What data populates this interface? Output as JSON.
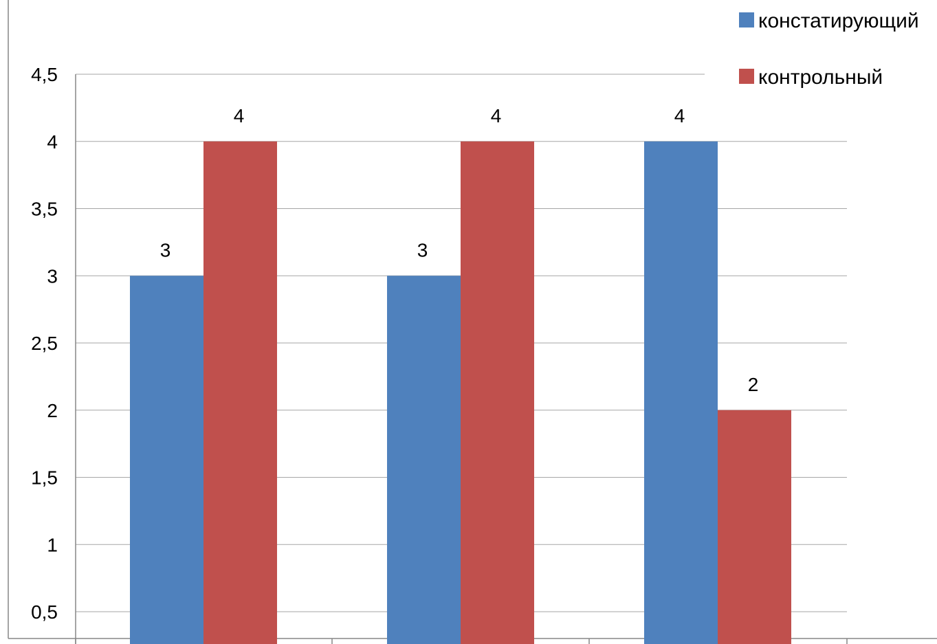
{
  "chart_data": {
    "type": "bar",
    "title": "",
    "xlabel": "",
    "ylabel": "",
    "categories": [
      "",
      "",
      ""
    ],
    "ylim": [
      0.5,
      4.5
    ],
    "yticks": [
      0.5,
      1,
      1.5,
      2,
      2.5,
      3,
      3.5,
      4,
      4.5
    ],
    "ytick_labels": [
      "0,5",
      "1",
      "1,5",
      "2",
      "2,5",
      "3",
      "3,5",
      "4",
      "4,5"
    ],
    "grid": true,
    "legend_position": "top-right",
    "series": [
      {
        "name": "констатирующий",
        "color": "#4f81bd",
        "values": [
          3,
          3,
          4
        ],
        "labels": [
          "3",
          "3",
          "4"
        ],
        "labeled": [
          true,
          true,
          true
        ]
      },
      {
        "name": "контрольный",
        "color": "#c0504d",
        "values": [
          4,
          4,
          2
        ],
        "labels": [
          "4",
          "4",
          "2"
        ],
        "labeled": [
          true,
          true,
          true
        ]
      }
    ]
  }
}
